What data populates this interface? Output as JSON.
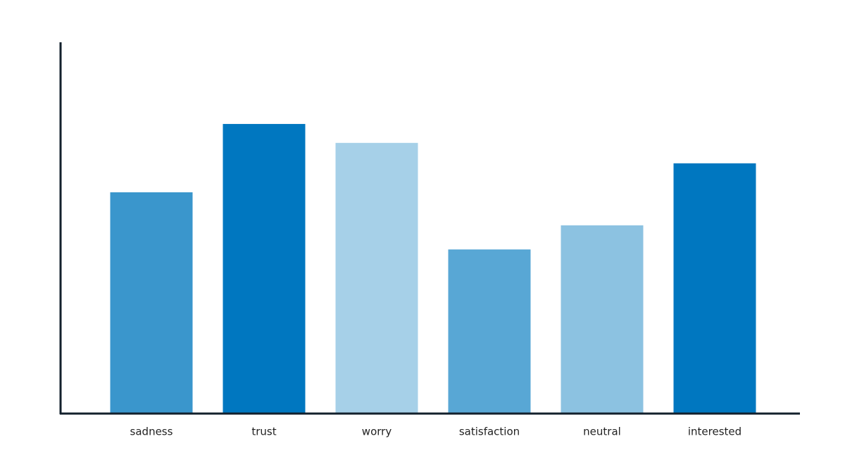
{
  "chart_data": {
    "type": "bar",
    "categories": [
      "sadness",
      "trust",
      "worry",
      "satisfaction",
      "neutral",
      "interested"
    ],
    "values": [
      59.6,
      78,
      72.9,
      44.2,
      50.7,
      67.4
    ],
    "colors": [
      "#3a96cc",
      "#0077c0",
      "#a6d0e8",
      "#58a7d5",
      "#8cc2e1",
      "#0077c0"
    ],
    "ylim": [
      0,
      100
    ]
  }
}
